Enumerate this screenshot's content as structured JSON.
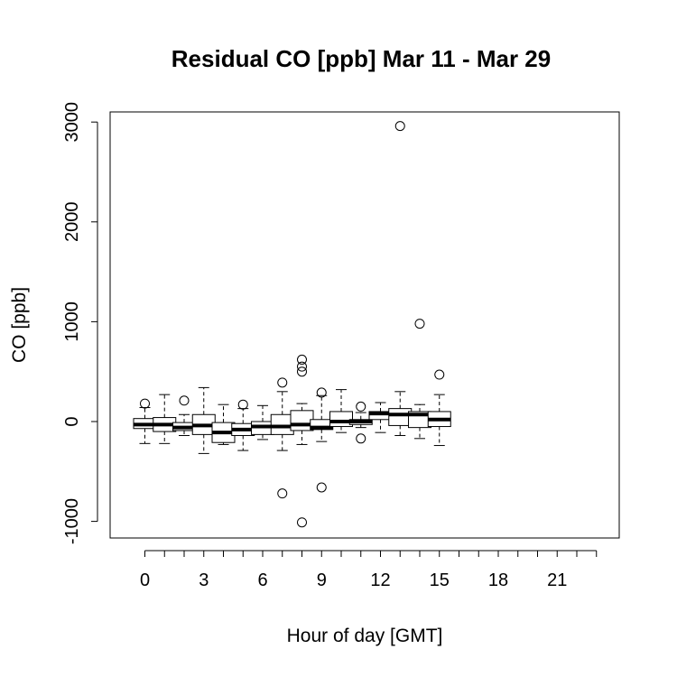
{
  "chart_data": {
    "type": "boxplot",
    "title": "Residual CO [ppb] Mar 11 - Mar 29",
    "xlabel": "Hour of day [GMT]",
    "ylabel": "CO [ppb]",
    "ylim": [
      -1150,
      3100
    ],
    "yticks": [
      -1000,
      0,
      1000,
      2000,
      3000
    ],
    "xticks": [
      0,
      3,
      6,
      9,
      12,
      15,
      18,
      21
    ],
    "grid": false,
    "categories": [
      0,
      1,
      2,
      3,
      4,
      5,
      6,
      7,
      8,
      9,
      10,
      11,
      12,
      13,
      14,
      15,
      16,
      17,
      18,
      19,
      20,
      21,
      22,
      23
    ],
    "boxes": [
      {
        "hour": 0,
        "whisker_low": -220,
        "q1": -70,
        "median": -30,
        "q3": 30,
        "whisker_high": 140,
        "outliers": [
          180
        ]
      },
      {
        "hour": 1,
        "whisker_low": -220,
        "q1": -100,
        "median": -30,
        "q3": 40,
        "whisker_high": 270,
        "outliers": []
      },
      {
        "hour": 2,
        "whisker_low": -140,
        "q1": -90,
        "median": -60,
        "q3": -10,
        "whisker_high": 70,
        "outliers": [
          210
        ]
      },
      {
        "hour": 3,
        "whisker_low": -320,
        "q1": -130,
        "median": -40,
        "q3": 70,
        "whisker_high": 340,
        "outliers": []
      },
      {
        "hour": 4,
        "whisker_low": -230,
        "q1": -210,
        "median": -110,
        "q3": -10,
        "whisker_high": 170,
        "outliers": []
      },
      {
        "hour": 5,
        "whisker_low": -290,
        "q1": -140,
        "median": -80,
        "q3": -20,
        "whisker_high": 130,
        "outliers": [
          170
        ]
      },
      {
        "hour": 6,
        "whisker_low": -180,
        "q1": -130,
        "median": -50,
        "q3": 0,
        "whisker_high": 160,
        "outliers": []
      },
      {
        "hour": 7,
        "whisker_low": -290,
        "q1": -130,
        "median": -50,
        "q3": 70,
        "whisker_high": 300,
        "outliers": [
          390,
          -720
        ]
      },
      {
        "hour": 8,
        "whisker_low": -230,
        "q1": -90,
        "median": -30,
        "q3": 110,
        "whisker_high": 180,
        "outliers": [
          620,
          550,
          500,
          -1010
        ]
      },
      {
        "hour": 9,
        "whisker_low": -200,
        "q1": -80,
        "median": -60,
        "q3": 20,
        "whisker_high": 260,
        "outliers": [
          290,
          -660
        ]
      },
      {
        "hour": 10,
        "whisker_low": -110,
        "q1": -50,
        "median": 0,
        "q3": 100,
        "whisker_high": 320,
        "outliers": []
      },
      {
        "hour": 11,
        "whisker_low": -60,
        "q1": -30,
        "median": 0,
        "q3": 20,
        "whisker_high": 90,
        "outliers": [
          150,
          -170
        ]
      },
      {
        "hour": 12,
        "whisker_low": -110,
        "q1": 20,
        "median": 80,
        "q3": 100,
        "whisker_high": 190,
        "outliers": []
      },
      {
        "hour": 13,
        "whisker_low": -140,
        "q1": -40,
        "median": 70,
        "q3": 130,
        "whisker_high": 300,
        "outliers": [
          2960
        ]
      },
      {
        "hour": 14,
        "whisker_low": -170,
        "q1": -60,
        "median": 70,
        "q3": 100,
        "whisker_high": 170,
        "outliers": [
          980
        ]
      },
      {
        "hour": 15,
        "whisker_low": -240,
        "q1": -50,
        "median": 20,
        "q3": 100,
        "whisker_high": 270,
        "outliers": [
          470
        ]
      }
    ]
  }
}
